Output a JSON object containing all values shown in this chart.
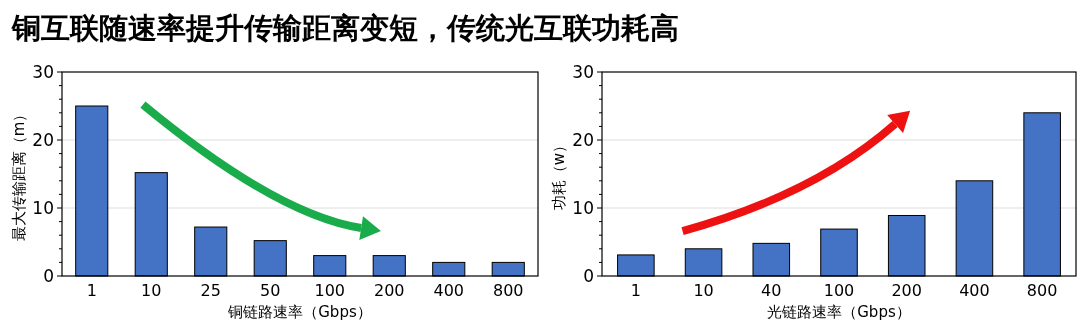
{
  "chart_data": [
    {
      "type": "bar",
      "title": "铜互联随速率提升传输距离变短，传统光互联功耗高",
      "xlabel": "铜链路速率（Gbps）",
      "ylabel": "最大传输距离（m）",
      "categories": [
        "1",
        "10",
        "25",
        "50",
        "100",
        "200",
        "400",
        "800"
      ],
      "values": [
        25,
        15.2,
        7.2,
        5.2,
        3,
        3,
        2,
        2
      ],
      "color": "#4472c4",
      "ylim": [
        0,
        30
      ],
      "yticks": [
        0,
        {
          "value": 2,
          "label": null
        },
        {
          "value": 4,
          "label": null
        },
        {
          "value": 6,
          "label": null
        },
        {
          "value": 8,
          "label": null
        },
        10,
        {
          "value": 12,
          "label": null
        },
        {
          "value": 14,
          "label": null
        },
        {
          "value": 16,
          "label": null
        },
        {
          "value": 18,
          "label": null
        },
        20,
        {
          "value": 22,
          "label": null
        },
        {
          "value": 24,
          "label": null
        },
        {
          "value": 26,
          "label": null
        },
        {
          "value": 28,
          "label": null
        },
        30
      ],
      "grid": "y"
    },
    {
      "type": "bar",
      "xlabel": "光链路速率（Gbps）",
      "ylabel": "功耗（w）",
      "categories": [
        "1",
        "10",
        "40",
        "100",
        "200",
        "400",
        "800"
      ],
      "values": [
        3.1,
        4,
        4.8,
        6.9,
        8.9,
        14,
        24
      ],
      "color": "#4472c4",
      "ylim": [
        0,
        30
      ],
      "yticks": [
        0,
        {
          "value": 2,
          "label": null
        },
        {
          "value": 4,
          "label": null
        },
        {
          "value": 6,
          "label": null
        },
        {
          "value": 8,
          "label": null
        },
        10,
        {
          "value": 12,
          "label": null
        },
        {
          "value": 14,
          "label": null
        },
        {
          "value": 16,
          "label": null
        },
        {
          "value": 18,
          "label": null
        },
        20,
        {
          "value": 22,
          "label": null
        },
        {
          "value": 24,
          "label": null
        },
        {
          "value": 26,
          "label": null
        },
        {
          "value": 28,
          "label": null
        },
        30
      ],
      "grid": "y"
    }
  ]
}
